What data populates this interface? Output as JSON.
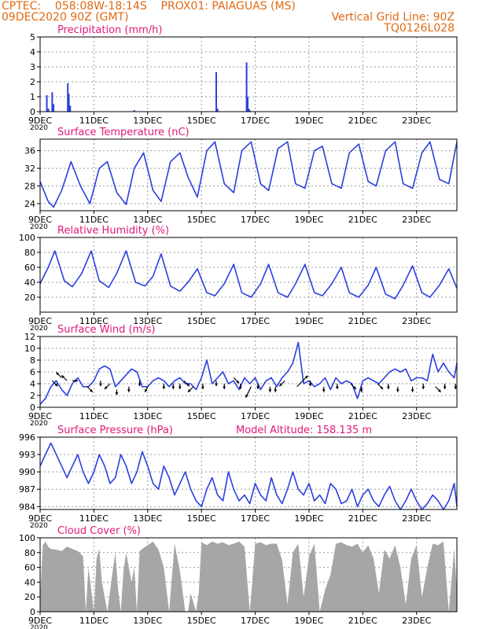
{
  "header": {
    "line1": "CPTEC:    058:08W-18:14S    PROX01: PAIAGUAS (MS)",
    "line2_left": "09DEC2020 90Z (GMT)",
    "line2_right": "Vertical Grid Line: 90Z",
    "line3_right": "TQ0126L028"
  },
  "colors": {
    "header": "#e06a14",
    "title": "#e0197a",
    "series": "#2b3fe0",
    "cloud": "#a6a6a6",
    "frame": "#000000",
    "grid": "#9a9a9a"
  },
  "x_axis": {
    "ticks": [
      "9DEC",
      "11DEC",
      "13DEC",
      "15DEC",
      "17DEC",
      "19DEC",
      "21DEC",
      "23DEC"
    ],
    "tick_days": [
      0,
      2,
      4,
      6,
      8,
      10,
      12,
      14
    ],
    "xlim_days": [
      0,
      15.5
    ],
    "year_fragment": "2020"
  },
  "chart_data": [
    {
      "type": "bar",
      "title": "Precipitation (mm/h)",
      "ylim": [
        0,
        5
      ],
      "yticks": [
        0,
        1,
        2,
        3,
        4,
        5
      ],
      "x_unit": "days since 09DEC 18Z",
      "x": [
        0.25,
        0.31,
        0.45,
        0.5,
        1.03,
        1.07,
        1.12,
        3.5,
        6.55,
        6.6,
        7.68,
        7.72,
        7.76,
        7.8
      ],
      "values": [
        1.1,
        0.2,
        1.3,
        0.5,
        1.9,
        1.2,
        0.4,
        0.1,
        2.65,
        0.2,
        3.3,
        1.0,
        0.2,
        0.1
      ]
    },
    {
      "type": "line",
      "title": "Surface Temperature (nC)",
      "ylim": [
        22.4,
        38.6
      ],
      "yticks": [
        24,
        28,
        32,
        36
      ],
      "x": [
        0,
        0.3,
        0.5,
        0.8,
        1.15,
        1.5,
        1.85,
        2.2,
        2.5,
        2.85,
        3.2,
        3.5,
        3.85,
        4.2,
        4.5,
        4.85,
        5.2,
        5.5,
        5.85,
        6.2,
        6.5,
        6.85,
        7.2,
        7.5,
        7.85,
        8.2,
        8.5,
        8.85,
        9.2,
        9.5,
        9.85,
        10.2,
        10.5,
        10.85,
        11.2,
        11.5,
        11.85,
        12.2,
        12.5,
        12.85,
        13.2,
        13.5,
        13.85,
        14.2,
        14.5,
        14.85,
        15.2,
        15.5
      ],
      "values": [
        29,
        24.5,
        23.2,
        27,
        33.5,
        28,
        24,
        32,
        33.5,
        26.5,
        23.8,
        32,
        35.5,
        27,
        24.5,
        33.5,
        35.5,
        30,
        25.5,
        36,
        38,
        28.5,
        26.5,
        36,
        38,
        28.5,
        27,
        36.5,
        38,
        28.5,
        27.5,
        36,
        37,
        28.5,
        27.5,
        35.5,
        37.5,
        29,
        28,
        36,
        38,
        28.5,
        27.5,
        35.5,
        38,
        29.5,
        28.5,
        38
      ]
    },
    {
      "type": "line",
      "title": "Relative Humidity (%)",
      "ylim": [
        0,
        100
      ],
      "yticks": [
        20,
        40,
        60,
        80,
        100
      ],
      "x": [
        0,
        0.3,
        0.55,
        0.9,
        1.2,
        1.55,
        1.9,
        2.2,
        2.55,
        2.85,
        3.2,
        3.55,
        3.9,
        4.2,
        4.5,
        4.85,
        5.2,
        5.5,
        5.85,
        6.2,
        6.5,
        6.85,
        7.2,
        7.5,
        7.85,
        8.2,
        8.5,
        8.85,
        9.2,
        9.5,
        9.85,
        10.2,
        10.5,
        10.85,
        11.2,
        11.5,
        11.85,
        12.2,
        12.5,
        12.85,
        13.2,
        13.5,
        13.85,
        14.2,
        14.5,
        14.85,
        15.2,
        15.5
      ],
      "values": [
        38,
        60,
        82,
        42,
        34,
        52,
        82,
        42,
        33,
        52,
        82,
        40,
        35,
        48,
        78,
        35,
        28,
        40,
        58,
        26,
        22,
        38,
        64,
        26,
        20,
        38,
        64,
        26,
        20,
        38,
        64,
        26,
        22,
        38,
        60,
        26,
        20,
        36,
        60,
        24,
        18,
        36,
        62,
        26,
        20,
        36,
        58,
        32
      ]
    },
    {
      "type": "line",
      "title": "Surface Wind (m/s)",
      "ylim": [
        0,
        12
      ],
      "yticks": [
        0,
        2,
        4,
        6,
        8,
        10,
        12
      ],
      "x": [
        0,
        0.2,
        0.4,
        0.6,
        0.8,
        1.0,
        1.2,
        1.4,
        1.6,
        1.8,
        2.0,
        2.2,
        2.4,
        2.6,
        2.8,
        3.0,
        3.2,
        3.4,
        3.6,
        3.8,
        4.0,
        4.2,
        4.4,
        4.6,
        4.8,
        5.0,
        5.2,
        5.4,
        5.6,
        5.8,
        6.0,
        6.2,
        6.4,
        6.6,
        6.8,
        7.0,
        7.2,
        7.4,
        7.6,
        7.8,
        8.0,
        8.2,
        8.4,
        8.6,
        8.8,
        9.0,
        9.2,
        9.4,
        9.6,
        9.8,
        10.0,
        10.2,
        10.4,
        10.6,
        10.8,
        11.0,
        11.2,
        11.4,
        11.6,
        11.8,
        12.0,
        12.2,
        12.4,
        12.6,
        12.8,
        13.0,
        13.2,
        13.4,
        13.6,
        13.8,
        14.0,
        14.2,
        14.4,
        14.6,
        14.8,
        15.0,
        15.2,
        15.4,
        15.5
      ],
      "values": [
        0.5,
        1.5,
        3.5,
        4.5,
        3,
        2,
        4,
        5,
        3.5,
        3.5,
        4.5,
        6.5,
        7,
        6.5,
        3.5,
        4.5,
        5.5,
        6.5,
        6,
        3.5,
        3.5,
        4.5,
        5,
        4.5,
        3.5,
        4.5,
        5,
        4,
        4,
        3,
        5,
        8,
        4,
        5,
        6,
        4,
        4.5,
        3,
        5,
        4,
        5,
        3,
        4.5,
        5,
        3.5,
        5,
        6,
        7.5,
        11,
        4,
        4.5,
        3.5,
        4,
        5,
        3,
        5,
        4,
        4.5,
        4,
        1.5,
        4.5,
        5,
        4.5,
        4,
        5,
        6,
        6.5,
        6,
        6.5,
        4.5,
        5,
        5,
        4.5,
        9,
        6,
        7.5,
        6,
        5,
        7.5
      ]
    },
    {
      "type": "line",
      "title": "Surface Pressure (hPa)",
      "annotation": "Model Altitude: 158.135 m",
      "ylim": [
        983.5,
        996
      ],
      "yticks": [
        984,
        987,
        990,
        993,
        996
      ],
      "x": [
        0,
        0.2,
        0.4,
        0.6,
        0.8,
        1.0,
        1.2,
        1.4,
        1.6,
        1.8,
        2.0,
        2.2,
        2.4,
        2.6,
        2.8,
        3.0,
        3.2,
        3.4,
        3.6,
        3.8,
        4.0,
        4.2,
        4.4,
        4.6,
        4.8,
        5.0,
        5.2,
        5.4,
        5.6,
        5.8,
        6.0,
        6.2,
        6.4,
        6.6,
        6.8,
        7.0,
        7.2,
        7.4,
        7.6,
        7.8,
        8.0,
        8.2,
        8.4,
        8.6,
        8.8,
        9.0,
        9.2,
        9.4,
        9.6,
        9.8,
        10.0,
        10.2,
        10.4,
        10.6,
        10.8,
        11.0,
        11.2,
        11.4,
        11.6,
        11.8,
        12.0,
        12.2,
        12.4,
        12.6,
        12.8,
        13.0,
        13.2,
        13.4,
        13.6,
        13.8,
        14.0,
        14.2,
        14.4,
        14.6,
        14.8,
        15.0,
        15.2,
        15.4,
        15.5
      ],
      "values": [
        991,
        993,
        995,
        993,
        991,
        989,
        991,
        993,
        990,
        988,
        990,
        993,
        991,
        988,
        989,
        993,
        991,
        988,
        990,
        993.5,
        991,
        988,
        987,
        991,
        989,
        986,
        988,
        990,
        987,
        985,
        984,
        987,
        989,
        986,
        985,
        990,
        987,
        985,
        986,
        984.5,
        988,
        986,
        985,
        989,
        986,
        984.5,
        987,
        990,
        987,
        986,
        988,
        985,
        986,
        984.5,
        988,
        987,
        984.5,
        985,
        987,
        984,
        986,
        987,
        985,
        984,
        986,
        987.5,
        985,
        983.5,
        985,
        987,
        985,
        983.5,
        984.5,
        986,
        985,
        983.5,
        985,
        988,
        984
      ]
    },
    {
      "type": "area",
      "title": "Cloud Cover (%)",
      "ylim": [
        0,
        100
      ],
      "yticks": [
        0,
        20,
        40,
        60,
        80,
        100
      ],
      "x": [
        0,
        0.1,
        0.2,
        0.3,
        0.4,
        0.6,
        0.8,
        1.0,
        1.2,
        1.4,
        1.6,
        1.7,
        1.8,
        2.0,
        2.1,
        2.2,
        2.3,
        2.5,
        2.7,
        2.8,
        2.9,
        3.0,
        3.1,
        3.2,
        3.4,
        3.5,
        3.6,
        3.7,
        3.8,
        4.0,
        4.2,
        4.4,
        4.6,
        4.8,
        5.0,
        5.2,
        5.4,
        5.5,
        5.6,
        5.8,
        5.9,
        6.0,
        6.2,
        6.4,
        6.6,
        6.8,
        7.0,
        7.2,
        7.4,
        7.6,
        7.8,
        8.0,
        8.2,
        8.4,
        8.6,
        8.8,
        9.0,
        9.2,
        9.4,
        9.6,
        9.8,
        10.0,
        10.2,
        10.4,
        10.6,
        10.8,
        11.0,
        11.2,
        11.4,
        11.6,
        11.8,
        12.0,
        12.2,
        12.4,
        12.6,
        12.8,
        13.0,
        13.2,
        13.4,
        13.6,
        13.8,
        14.0,
        14.2,
        14.4,
        14.6,
        14.8,
        15.0,
        15.2,
        15.4,
        15.5
      ],
      "values": [
        20,
        90,
        95,
        88,
        85,
        84,
        82,
        88,
        85,
        82,
        75,
        0,
        60,
        0,
        72,
        85,
        40,
        0,
        55,
        80,
        30,
        0,
        55,
        80,
        40,
        60,
        0,
        82,
        85,
        90,
        95,
        84,
        60,
        0,
        92,
        55,
        0,
        0,
        25,
        0,
        25,
        94,
        90,
        95,
        92,
        94,
        90,
        92,
        95,
        88,
        0,
        92,
        94,
        90,
        92,
        92,
        70,
        10,
        80,
        92,
        20,
        75,
        92,
        0,
        30,
        50,
        92,
        94,
        90,
        88,
        92,
        80,
        90,
        72,
        25,
        84,
        72,
        90,
        60,
        10,
        72,
        90,
        20,
        60,
        92,
        90,
        95,
        0,
        85,
        30
      ]
    }
  ],
  "wind_vectors": {
    "x": [
      0.45,
      0.8,
      1.0,
      1.2,
      1.75,
      2.25,
      2.6,
      2.85,
      3.3,
      3.7,
      4.0,
      4.6,
      4.95,
      5.2,
      5.35,
      5.7,
      6.05,
      6.55,
      6.85,
      7.2,
      7.45,
      7.85,
      8.1,
      8.55,
      8.75,
      9.1,
      9.55,
      10.05,
      10.55,
      11.05,
      11.55,
      11.95,
      12.55,
      12.95,
      13.3,
      13.85,
      14.25,
      14.7,
      15.05,
      15.45
    ],
    "y": [
      4.5,
      5,
      4.5,
      4.5,
      3.5,
      4.5,
      4,
      3,
      3.5,
      4.5,
      3.5,
      4,
      4,
      4,
      4.5,
      3.5,
      4,
      4.5,
      4,
      5,
      4,
      3.5,
      4,
      3.5,
      3.5,
      4.5,
      3.5,
      4.5,
      3.5,
      4,
      4,
      3.5,
      4,
      4,
      3.5,
      3.5,
      4,
      3.5,
      4,
      4
    ],
    "u": [
      1,
      -1,
      -1,
      1,
      1,
      0,
      -1,
      0,
      0,
      0,
      -0.5,
      0,
      0,
      0,
      1,
      -1,
      0,
      0,
      0,
      1,
      0,
      -1,
      0,
      0,
      0,
      -1,
      2,
      0,
      0,
      0,
      1,
      0,
      1,
      0,
      0,
      0,
      0,
      1,
      0,
      0
    ],
    "v": [
      -1,
      1,
      1,
      0,
      -1,
      -1,
      -1,
      -1,
      -1,
      -1,
      -1,
      -1,
      -1,
      -1,
      -1,
      -1,
      -1,
      -1,
      -1,
      -1,
      -1,
      -2,
      -1,
      -1,
      -1,
      -1,
      2,
      -1,
      -1,
      -1,
      -1,
      -1,
      -1,
      -1,
      -1,
      -1,
      -1,
      -1,
      -1,
      -1
    ]
  }
}
